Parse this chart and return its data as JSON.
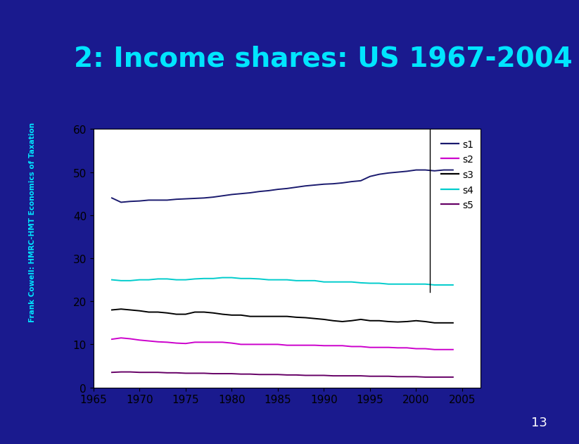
{
  "title": "2: Income shares: US 1967-2004",
  "title_color": "#00e5ff",
  "title_fontsize": 28,
  "slide_bg": "#1a1a8e",
  "plot_bg": "#ffffff",
  "xlim": [
    1965,
    2007
  ],
  "ylim": [
    0,
    60
  ],
  "yticks": [
    0,
    10,
    20,
    30,
    40,
    50,
    60
  ],
  "xticks": [
    1965,
    1970,
    1975,
    1980,
    1985,
    1990,
    1995,
    2000,
    2005
  ],
  "tick_label_fontsize": 11,
  "series": {
    "s1": {
      "color": "#1a1a6e",
      "label": "s1",
      "years": [
        1967,
        1968,
        1969,
        1970,
        1971,
        1972,
        1973,
        1974,
        1975,
        1976,
        1977,
        1978,
        1979,
        1980,
        1981,
        1982,
        1983,
        1984,
        1985,
        1986,
        1987,
        1988,
        1989,
        1990,
        1991,
        1992,
        1993,
        1994,
        1995,
        1996,
        1997,
        1998,
        1999,
        2000,
        2001,
        2002,
        2003,
        2004
      ],
      "values": [
        44.0,
        43.0,
        43.2,
        43.3,
        43.5,
        43.5,
        43.5,
        43.7,
        43.8,
        43.9,
        44.0,
        44.2,
        44.5,
        44.8,
        45.0,
        45.2,
        45.5,
        45.7,
        46.0,
        46.2,
        46.5,
        46.8,
        47.0,
        47.2,
        47.3,
        47.5,
        47.8,
        48.0,
        49.0,
        49.5,
        49.8,
        50.0,
        50.2,
        50.5,
        50.5,
        50.3,
        50.5,
        50.5
      ]
    },
    "s2": {
      "color": "#cc00cc",
      "label": "s2",
      "years": [
        1967,
        1968,
        1969,
        1970,
        1971,
        1972,
        1973,
        1974,
        1975,
        1976,
        1977,
        1978,
        1979,
        1980,
        1981,
        1982,
        1983,
        1984,
        1985,
        1986,
        1987,
        1988,
        1989,
        1990,
        1991,
        1992,
        1993,
        1994,
        1995,
        1996,
        1997,
        1998,
        1999,
        2000,
        2001,
        2002,
        2003,
        2004
      ],
      "values": [
        11.2,
        11.5,
        11.3,
        11.0,
        10.8,
        10.6,
        10.5,
        10.3,
        10.2,
        10.5,
        10.5,
        10.5,
        10.5,
        10.3,
        10.0,
        10.0,
        10.0,
        10.0,
        10.0,
        9.8,
        9.8,
        9.8,
        9.8,
        9.7,
        9.7,
        9.7,
        9.5,
        9.5,
        9.3,
        9.3,
        9.3,
        9.2,
        9.2,
        9.0,
        9.0,
        8.8,
        8.8,
        8.8
      ]
    },
    "s3": {
      "color": "#000000",
      "label": "s3",
      "years": [
        1967,
        1968,
        1969,
        1970,
        1971,
        1972,
        1973,
        1974,
        1975,
        1976,
        1977,
        1978,
        1979,
        1980,
        1981,
        1982,
        1983,
        1984,
        1985,
        1986,
        1987,
        1988,
        1989,
        1990,
        1991,
        1992,
        1993,
        1994,
        1995,
        1996,
        1997,
        1998,
        1999,
        2000,
        2001,
        2002,
        2003,
        2004
      ],
      "values": [
        18.0,
        18.2,
        18.0,
        17.8,
        17.5,
        17.5,
        17.3,
        17.0,
        17.0,
        17.5,
        17.5,
        17.3,
        17.0,
        16.8,
        16.8,
        16.5,
        16.5,
        16.5,
        16.5,
        16.5,
        16.3,
        16.2,
        16.0,
        15.8,
        15.5,
        15.3,
        15.5,
        15.8,
        15.5,
        15.5,
        15.3,
        15.2,
        15.3,
        15.5,
        15.3,
        15.0,
        15.0,
        15.0
      ]
    },
    "s4": {
      "color": "#00cccc",
      "label": "s4",
      "years": [
        1967,
        1968,
        1969,
        1970,
        1971,
        1972,
        1973,
        1974,
        1975,
        1976,
        1977,
        1978,
        1979,
        1980,
        1981,
        1982,
        1983,
        1984,
        1985,
        1986,
        1987,
        1988,
        1989,
        1990,
        1991,
        1992,
        1993,
        1994,
        1995,
        1996,
        1997,
        1998,
        1999,
        2000,
        2001,
        2002,
        2003,
        2004
      ],
      "values": [
        25.0,
        24.8,
        24.8,
        25.0,
        25.0,
        25.2,
        25.2,
        25.0,
        25.0,
        25.2,
        25.3,
        25.3,
        25.5,
        25.5,
        25.3,
        25.3,
        25.2,
        25.0,
        25.0,
        25.0,
        24.8,
        24.8,
        24.8,
        24.5,
        24.5,
        24.5,
        24.5,
        24.3,
        24.2,
        24.2,
        24.0,
        24.0,
        24.0,
        24.0,
        24.0,
        23.8,
        23.8,
        23.8
      ]
    },
    "s5": {
      "color": "#660066",
      "label": "s5",
      "years": [
        1967,
        1968,
        1969,
        1970,
        1971,
        1972,
        1973,
        1974,
        1975,
        1976,
        1977,
        1978,
        1979,
        1980,
        1981,
        1982,
        1983,
        1984,
        1985,
        1986,
        1987,
        1988,
        1989,
        1990,
        1991,
        1992,
        1993,
        1994,
        1995,
        1996,
        1997,
        1998,
        1999,
        2000,
        2001,
        2002,
        2003,
        2004
      ],
      "values": [
        3.5,
        3.6,
        3.6,
        3.5,
        3.5,
        3.5,
        3.4,
        3.4,
        3.3,
        3.3,
        3.3,
        3.2,
        3.2,
        3.2,
        3.1,
        3.1,
        3.0,
        3.0,
        3.0,
        2.9,
        2.9,
        2.8,
        2.8,
        2.8,
        2.7,
        2.7,
        2.7,
        2.7,
        2.6,
        2.6,
        2.6,
        2.5,
        2.5,
        2.5,
        2.4,
        2.4,
        2.4,
        2.4
      ]
    }
  },
  "slide_number": "13",
  "slide_number_color": "#ffffff",
  "sidebar_text": "Frank Cowell: HMRC-HMT Economics of Taxation",
  "sidebar_color": "#00e5ff"
}
